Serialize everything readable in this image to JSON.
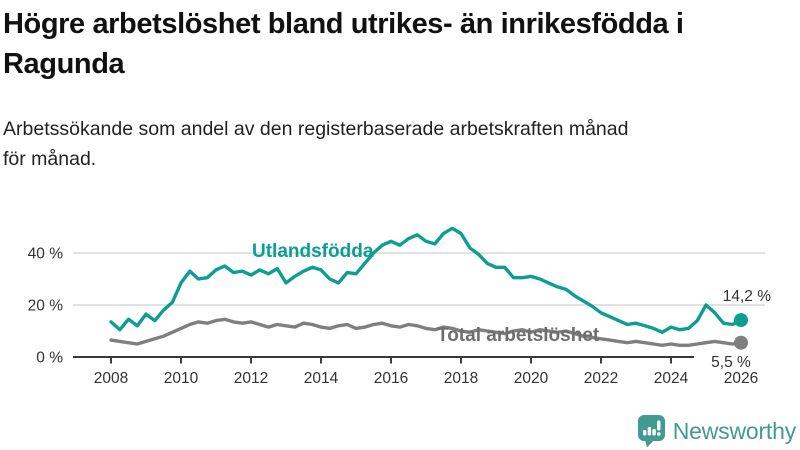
{
  "header": {
    "title_line1": "Högre arbetslöshet bland utrikes- än inrikesfödda i",
    "title_line2": "Ragunda",
    "subtitle_line1": "Arbetssökande som andel av den registerbaserade arbetskraften månad",
    "subtitle_line2": "för månad."
  },
  "chart_data": {
    "type": "line",
    "title": "Högre arbetslöshet bland utrikes- än inrikesfödda i Ragunda",
    "subtitle": "Arbetssökande som andel av den registerbaserade arbetskraften månad för månad.",
    "grid": "horizontal",
    "legend_position": "inline-labels",
    "x_axis": {
      "range": [
        2008,
        2026
      ],
      "ticks": [
        2008,
        2010,
        2012,
        2014,
        2016,
        2018,
        2020,
        2022,
        2024,
        2026
      ],
      "labels": [
        "2008",
        "2010",
        "2012",
        "2014",
        "2016",
        "2018",
        "2020",
        "2022",
        "2024",
        "2026"
      ]
    },
    "y_axis": {
      "range": [
        0,
        52
      ],
      "ticks": [
        0,
        20,
        40
      ],
      "labels": [
        "0 %",
        "20 %",
        "40 %"
      ]
    },
    "series": [
      {
        "name": "utlandsfodda",
        "label": "Utlandsfödda",
        "end_label": "14,2 %",
        "end_value": 14.2,
        "color": "#0d9e93",
        "start_year": 2008,
        "interval_years": 0.25,
        "values": [
          13.5,
          10.5,
          14.5,
          12,
          16.5,
          14,
          18,
          21,
          28.5,
          33,
          30,
          30.5,
          33.5,
          35,
          32.5,
          33,
          31.5,
          33.5,
          32,
          34,
          28.5,
          31,
          33,
          34.5,
          33.5,
          30,
          28.5,
          32.5,
          32,
          36,
          40,
          43,
          44.5,
          43,
          45.5,
          47,
          44.5,
          43.5,
          47.5,
          49.5,
          47.5,
          42,
          39.5,
          36,
          34.5,
          34.5,
          30.5,
          30.5,
          31,
          30,
          28.5,
          27,
          26,
          23.5,
          21.5,
          19.5,
          17,
          15.5,
          14,
          12.5,
          13,
          12,
          11,
          9.5,
          11.5,
          10.5,
          11,
          14,
          20,
          17,
          13,
          12.5,
          14.2
        ]
      },
      {
        "name": "total-arbetsloshet",
        "label": "Total arbetslöshet",
        "end_label": "5,5 %",
        "end_value": 5.5,
        "color": "#7f7f7f",
        "start_year": 2008,
        "interval_years": 0.25,
        "values": [
          6.5,
          6,
          5.5,
          5,
          6,
          7,
          8,
          9.5,
          11,
          12.5,
          13.5,
          13,
          14,
          14.5,
          13.5,
          13,
          13.5,
          12.5,
          11.5,
          12.5,
          12,
          11.5,
          13,
          12.5,
          11.5,
          11,
          12,
          12.5,
          11,
          11.5,
          12.5,
          13,
          12,
          11.5,
          12.5,
          12,
          11,
          10.5,
          11.5,
          11,
          10,
          9.5,
          10.5,
          10,
          9.5,
          9,
          10,
          10.5,
          9.5,
          10.5,
          10,
          9.5,
          10,
          9,
          8,
          7.5,
          7,
          6.5,
          6,
          5.5,
          6,
          5.5,
          5,
          4.5,
          5,
          4.5,
          4.5,
          5,
          5.5,
          6,
          5.5,
          5,
          5.5
        ]
      }
    ]
  },
  "colors": {
    "series_utlandsfodda": "#0d9e93",
    "series_total": "#7f7f7f",
    "grid_line": "#d9d9d9",
    "axis_line": "#3a3a3a",
    "text_dark": "#333333",
    "logo_teal": "#429a92"
  },
  "logo": {
    "text": "Newsworthy",
    "icon": "bar-chart-speech-bubble"
  }
}
